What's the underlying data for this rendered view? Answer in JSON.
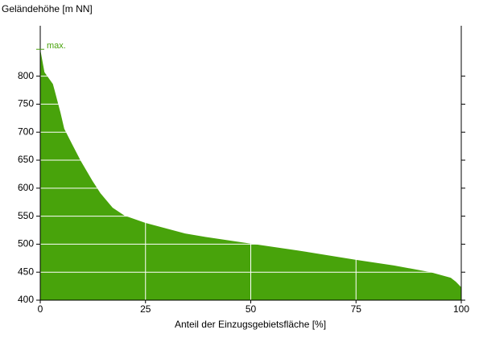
{
  "chart_data": {
    "type": "area",
    "title": "Geländehöhe [m NN]",
    "x_label": "Anteil der Einzugsgebietsfläche [%]",
    "x": [
      0,
      1,
      3,
      3.4,
      4.8,
      5.7,
      7.6,
      9.6,
      12.4,
      14.3,
      17.2,
      20,
      25,
      34.4,
      40,
      50,
      61,
      75,
      84,
      92.7,
      97.5,
      98.7,
      100
    ],
    "values": [
      848,
      807,
      786,
      775,
      735,
      706,
      678,
      649,
      613,
      591,
      565,
      551,
      538,
      519,
      512,
      501,
      489,
      472,
      462,
      450,
      440,
      433,
      423
    ],
    "color": "#48a30b",
    "xlim": [
      0,
      100
    ],
    "xticks": [
      0,
      25,
      50,
      75,
      100
    ],
    "ylim": [
      400,
      890
    ],
    "yticks": [
      400,
      450,
      500,
      550,
      600,
      650,
      700,
      750,
      800
    ],
    "grid": true,
    "annotation": {
      "text": "max.",
      "value": 848
    }
  }
}
